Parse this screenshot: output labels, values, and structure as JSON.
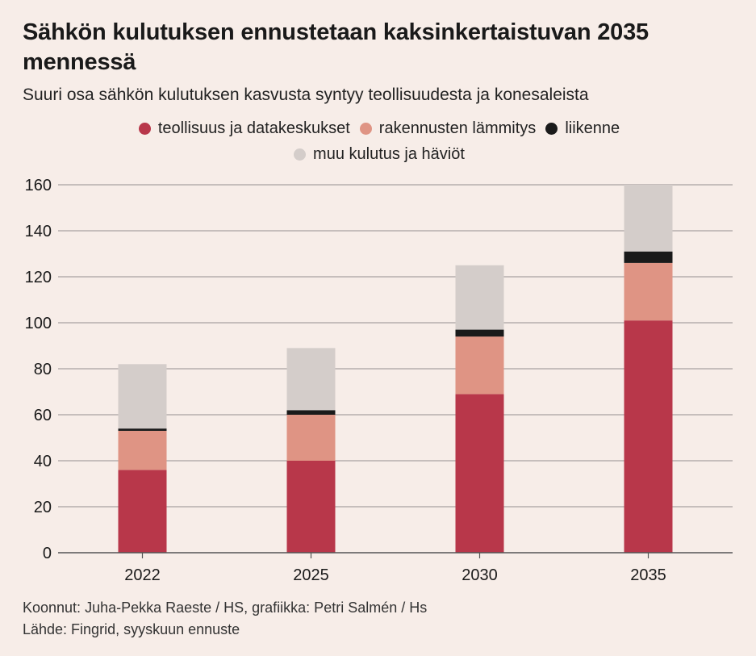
{
  "header": {
    "title": "Sähkön kulutuksen ennustetaan kaksinkertaistuvan 2035 mennessä",
    "subtitle": "Suuri osa sähkön kulutuksen kasvusta syntyy teollisuudesta ja konesaleista"
  },
  "colors": {
    "teollisuus": "#b8374a",
    "rakennukset": "#df9484",
    "liikenne": "#1a1a1a",
    "muu": "#d4cdca",
    "grid": "#a9a3a1",
    "axis": "#555555"
  },
  "chart_data": {
    "type": "bar",
    "stacked": true,
    "title": "Sähkön kulutuksen ennustetaan kaksinkertaistuvan 2035 mennessä",
    "subtitle": "Suuri osa sähkön kulutuksen kasvusta syntyy teollisuudesta ja konesaleista",
    "xlabel": "",
    "ylabel": "",
    "categories": [
      "2022",
      "2025",
      "2030",
      "2035"
    ],
    "ylim": [
      0,
      160
    ],
    "yticks": [
      0,
      20,
      40,
      60,
      80,
      100,
      120,
      140,
      160
    ],
    "grid": true,
    "legend_position": "top-center",
    "series": [
      {
        "key": "teollisuus",
        "name": "teollisuus ja datakeskukset",
        "values": [
          36,
          40,
          69,
          101
        ]
      },
      {
        "key": "rakennukset",
        "name": "rakennusten lämmitys",
        "values": [
          17,
          20,
          25,
          25
        ]
      },
      {
        "key": "liikenne",
        "name": "liikenne",
        "values": [
          1,
          2,
          3,
          5
        ]
      },
      {
        "key": "muu",
        "name": "muu kulutus ja häviöt",
        "values": [
          28,
          27,
          28,
          29
        ]
      }
    ]
  },
  "footer": {
    "credits": "Koonnut: Juha-Pekka Raeste / HS, grafiikka: Petri Salmén / Hs",
    "source": "Lähde: Fingrid, syyskuun ennuste"
  }
}
